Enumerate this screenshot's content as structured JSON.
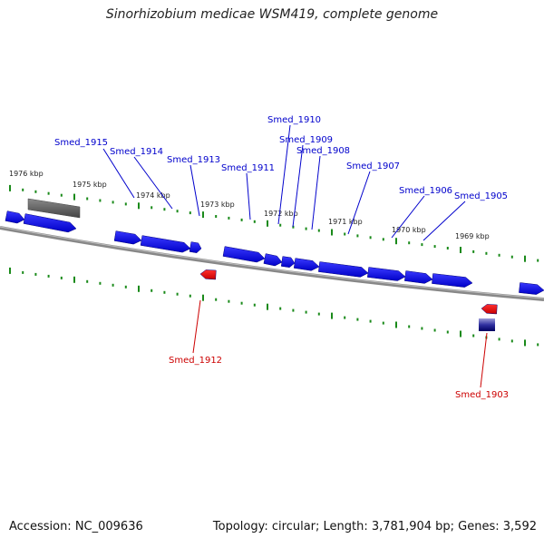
{
  "title": "Sinorhizobium medicae WSM419, complete genome",
  "footer": {
    "accession": "Accession: NC_009636",
    "summary": "Topology: circular; Length: 3,781,904 bp; Genes: 3,592"
  },
  "colors": {
    "forward_gene": "#0000ff",
    "reverse_gene": "#ff0000",
    "label_forward": "#0000cc",
    "label_reverse": "#cc0000",
    "tick": "#1a8a1a",
    "backbone": "#888888",
    "other_feature": "#666666"
  },
  "ticks": [
    "1976 kbp",
    "1975 kbp",
    "1974 kbp",
    "1973 kbp",
    "1972 kbp",
    "1971 kbp",
    "1970 kbp",
    "1969 kbp"
  ],
  "gene_labels": [
    {
      "name": "Smed_1915",
      "strand": "forward"
    },
    {
      "name": "Smed_1914",
      "strand": "forward"
    },
    {
      "name": "Smed_1913",
      "strand": "forward"
    },
    {
      "name": "Smed_1911",
      "strand": "forward"
    },
    {
      "name": "Smed_1910",
      "strand": "forward"
    },
    {
      "name": "Smed_1909",
      "strand": "forward"
    },
    {
      "name": "Smed_1908",
      "strand": "forward"
    },
    {
      "name": "Smed_1907",
      "strand": "forward"
    },
    {
      "name": "Smed_1906",
      "strand": "forward"
    },
    {
      "name": "Smed_1905",
      "strand": "forward"
    },
    {
      "name": "Smed_1912",
      "strand": "reverse"
    },
    {
      "name": "Smed_1903",
      "strand": "reverse"
    }
  ]
}
